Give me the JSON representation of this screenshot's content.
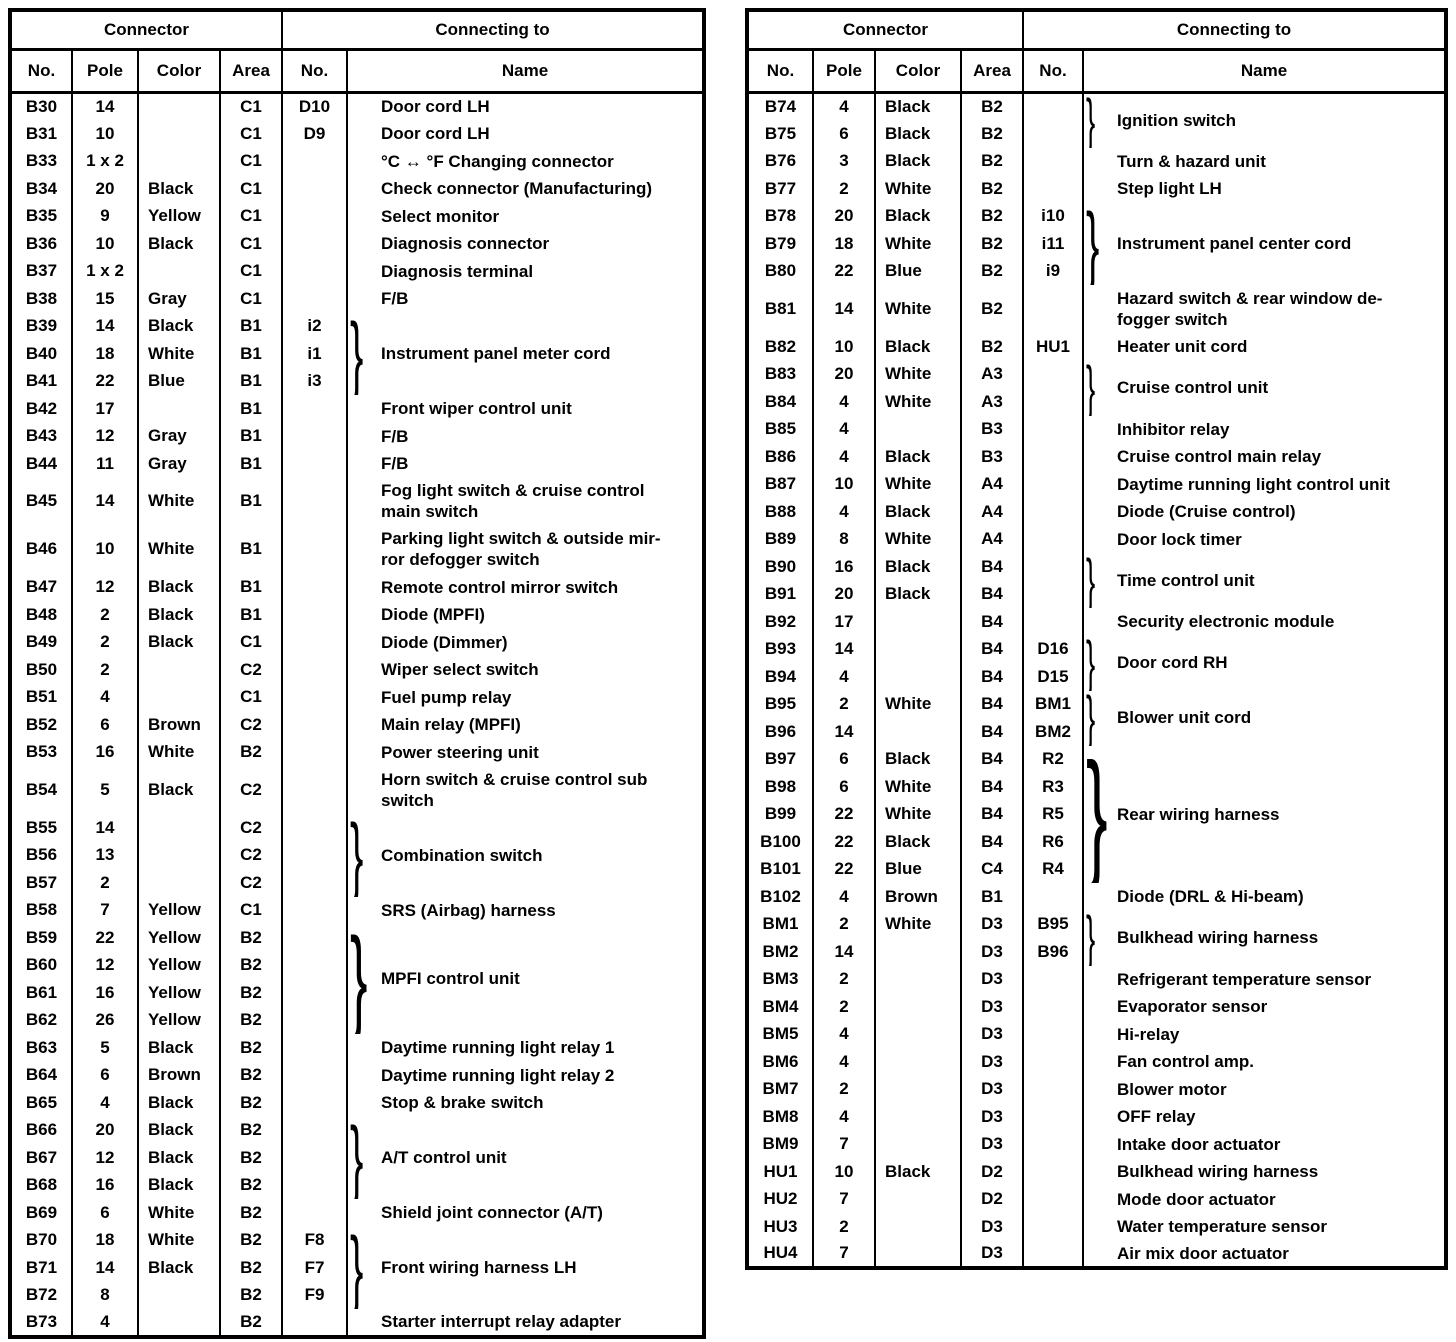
{
  "page": {
    "background_color": "#ffffff",
    "text_color": "#000000",
    "brace_char": "}"
  },
  "tables": [
    {
      "id": "left",
      "header": {
        "connector": "Connector",
        "connecting_to": "Connecting to",
        "columns": [
          "No.",
          "Pole",
          "Color",
          "Area",
          "No.",
          "Name"
        ]
      },
      "rows": [
        {
          "no": "B30",
          "pole": "14",
          "color": "",
          "area": "C1",
          "cno": "D10",
          "name": "Door cord LH"
        },
        {
          "no": "B31",
          "pole": "10",
          "color": "",
          "area": "C1",
          "cno": "D9",
          "name": "Door cord LH"
        },
        {
          "no": "B33",
          "pole": "1 x 2",
          "color": "",
          "area": "C1",
          "cno": "",
          "name": "°C ↔ °F Changing connector"
        },
        {
          "no": "B34",
          "pole": "20",
          "color": "Black",
          "area": "C1",
          "cno": "",
          "name": "Check connector (Manufacturing)"
        },
        {
          "no": "B35",
          "pole": "9",
          "color": "Yellow",
          "area": "C1",
          "cno": "",
          "name": "Select monitor"
        },
        {
          "no": "B36",
          "pole": "10",
          "color": "Black",
          "area": "C1",
          "cno": "",
          "name": "Diagnosis connector"
        },
        {
          "no": "B37",
          "pole": "1 x 2",
          "color": "",
          "area": "C1",
          "cno": "",
          "name": "Diagnosis terminal"
        },
        {
          "no": "B38",
          "pole": "15",
          "color": "Gray",
          "area": "C1",
          "cno": "",
          "name": "F/B"
        },
        {
          "no": "B39",
          "pole": "14",
          "color": "Black",
          "area": "B1",
          "cno": "i2",
          "name": "Instrument panel meter cord",
          "group": 3
        },
        {
          "no": "B40",
          "pole": "18",
          "color": "White",
          "area": "B1",
          "cno": "i1",
          "merged": true
        },
        {
          "no": "B41",
          "pole": "22",
          "color": "Blue",
          "area": "B1",
          "cno": "i3",
          "merged": true
        },
        {
          "no": "B42",
          "pole": "17",
          "color": "",
          "area": "B1",
          "cno": "",
          "name": "Front wiper control unit"
        },
        {
          "no": "B43",
          "pole": "12",
          "color": "Gray",
          "area": "B1",
          "cno": "",
          "name": "F/B"
        },
        {
          "no": "B44",
          "pole": "11",
          "color": "Gray",
          "area": "B1",
          "cno": "",
          "name": "F/B"
        },
        {
          "no": "B45",
          "pole": "14",
          "color": "White",
          "area": "B1",
          "cno": "",
          "name": "Fog light switch & cruise control\nmain switch",
          "tall": true
        },
        {
          "no": "B46",
          "pole": "10",
          "color": "White",
          "area": "B1",
          "cno": "",
          "name": "Parking light switch & outside mir-\nror defogger switch",
          "tall": true
        },
        {
          "no": "B47",
          "pole": "12",
          "color": "Black",
          "area": "B1",
          "cno": "",
          "name": "Remote control mirror switch"
        },
        {
          "no": "B48",
          "pole": "2",
          "color": "Black",
          "area": "B1",
          "cno": "",
          "name": "Diode (MPFI)"
        },
        {
          "no": "B49",
          "pole": "2",
          "color": "Black",
          "area": "C1",
          "cno": "",
          "name": "Diode (Dimmer)"
        },
        {
          "no": "B50",
          "pole": "2",
          "color": "",
          "area": "C2",
          "cno": "",
          "name": "Wiper select switch"
        },
        {
          "no": "B51",
          "pole": "4",
          "color": "",
          "area": "C1",
          "cno": "",
          "name": "Fuel pump relay"
        },
        {
          "no": "B52",
          "pole": "6",
          "color": "Brown",
          "area": "C2",
          "cno": "",
          "name": "Main relay (MPFI)"
        },
        {
          "no": "B53",
          "pole": "16",
          "color": "White",
          "area": "B2",
          "cno": "",
          "name": "Power steering unit"
        },
        {
          "no": "B54",
          "pole": "5",
          "color": "Black",
          "area": "C2",
          "cno": "",
          "name": "Horn switch & cruise control sub\nswitch",
          "tall": true
        },
        {
          "no": "B55",
          "pole": "14",
          "color": "",
          "area": "C2",
          "cno": "",
          "name": "Combination switch",
          "group": 3
        },
        {
          "no": "B56",
          "pole": "13",
          "color": "",
          "area": "C2",
          "cno": "",
          "merged": true
        },
        {
          "no": "B57",
          "pole": "2",
          "color": "",
          "area": "C2",
          "cno": "",
          "merged": true
        },
        {
          "no": "B58",
          "pole": "7",
          "color": "Yellow",
          "area": "C1",
          "cno": "",
          "name": "SRS (Airbag) harness"
        },
        {
          "no": "B59",
          "pole": "22",
          "color": "Yellow",
          "area": "B2",
          "cno": "",
          "name": "MPFI control unit",
          "group": 4
        },
        {
          "no": "B60",
          "pole": "12",
          "color": "Yellow",
          "area": "B2",
          "cno": "",
          "merged": true
        },
        {
          "no": "B61",
          "pole": "16",
          "color": "Yellow",
          "area": "B2",
          "cno": "",
          "merged": true
        },
        {
          "no": "B62",
          "pole": "26",
          "color": "Yellow",
          "area": "B2",
          "cno": "",
          "merged": true
        },
        {
          "no": "B63",
          "pole": "5",
          "color": "Black",
          "area": "B2",
          "cno": "",
          "name": "Daytime running light relay 1"
        },
        {
          "no": "B64",
          "pole": "6",
          "color": "Brown",
          "area": "B2",
          "cno": "",
          "name": "Daytime running light relay 2"
        },
        {
          "no": "B65",
          "pole": "4",
          "color": "Black",
          "area": "B2",
          "cno": "",
          "name": "Stop & brake switch"
        },
        {
          "no": "B66",
          "pole": "20",
          "color": "Black",
          "area": "B2",
          "cno": "",
          "name": "A/T control unit",
          "group": 3
        },
        {
          "no": "B67",
          "pole": "12",
          "color": "Black",
          "area": "B2",
          "cno": "",
          "merged": true
        },
        {
          "no": "B68",
          "pole": "16",
          "color": "Black",
          "area": "B2",
          "cno": "",
          "merged": true
        },
        {
          "no": "B69",
          "pole": "6",
          "color": "White",
          "area": "B2",
          "cno": "",
          "name": "Shield joint connector (A/T)"
        },
        {
          "no": "B70",
          "pole": "18",
          "color": "White",
          "area": "B2",
          "cno": "F8",
          "name": "Front wiring harness LH",
          "group": 3
        },
        {
          "no": "B71",
          "pole": "14",
          "color": "Black",
          "area": "B2",
          "cno": "F7",
          "merged": true
        },
        {
          "no": "B72",
          "pole": "8",
          "color": "",
          "area": "B2",
          "cno": "F9",
          "merged": true
        },
        {
          "no": "B73",
          "pole": "4",
          "color": "",
          "area": "B2",
          "cno": "",
          "name": "Starter interrupt relay adapter"
        }
      ]
    },
    {
      "id": "right",
      "header": {
        "connector": "Connector",
        "connecting_to": "Connecting to",
        "columns": [
          "No.",
          "Pole",
          "Color",
          "Area",
          "No.",
          "Name"
        ]
      },
      "rows": [
        {
          "no": "B74",
          "pole": "4",
          "color": "Black",
          "area": "B2",
          "cno": "",
          "name": "Ignition switch",
          "group": 2
        },
        {
          "no": "B75",
          "pole": "6",
          "color": "Black",
          "area": "B2",
          "cno": "",
          "merged": true
        },
        {
          "no": "B76",
          "pole": "3",
          "color": "Black",
          "area": "B2",
          "cno": "",
          "name": "Turn & hazard unit"
        },
        {
          "no": "B77",
          "pole": "2",
          "color": "White",
          "area": "B2",
          "cno": "",
          "name": "Step light LH"
        },
        {
          "no": "B78",
          "pole": "20",
          "color": "Black",
          "area": "B2",
          "cno": "i10",
          "name": "Instrument panel center cord",
          "group": 3
        },
        {
          "no": "B79",
          "pole": "18",
          "color": "White",
          "area": "B2",
          "cno": "i11",
          "merged": true
        },
        {
          "no": "B80",
          "pole": "22",
          "color": "Blue",
          "area": "B2",
          "cno": "i9",
          "merged": true
        },
        {
          "no": "B81",
          "pole": "14",
          "color": "White",
          "area": "B2",
          "cno": "",
          "name": "Hazard switch & rear window de-\nfogger switch",
          "tall": true
        },
        {
          "no": "B82",
          "pole": "10",
          "color": "Black",
          "area": "B2",
          "cno": "HU1",
          "name": "Heater unit cord"
        },
        {
          "no": "B83",
          "pole": "20",
          "color": "White",
          "area": "A3",
          "cno": "",
          "name": "Cruise control unit",
          "group": 2
        },
        {
          "no": "B84",
          "pole": "4",
          "color": "White",
          "area": "A3",
          "cno": "",
          "merged": true
        },
        {
          "no": "B85",
          "pole": "4",
          "color": "",
          "area": "B3",
          "cno": "",
          "name": "Inhibitor relay"
        },
        {
          "no": "B86",
          "pole": "4",
          "color": "Black",
          "area": "B3",
          "cno": "",
          "name": "Cruise control main relay"
        },
        {
          "no": "B87",
          "pole": "10",
          "color": "White",
          "area": "A4",
          "cno": "",
          "name": "Daytime running light control unit"
        },
        {
          "no": "B88",
          "pole": "4",
          "color": "Black",
          "area": "A4",
          "cno": "",
          "name": "Diode (Cruise control)"
        },
        {
          "no": "B89",
          "pole": "8",
          "color": "White",
          "area": "A4",
          "cno": "",
          "name": "Door lock timer"
        },
        {
          "no": "B90",
          "pole": "16",
          "color": "Black",
          "area": "B4",
          "cno": "",
          "name": "Time control unit",
          "group": 2
        },
        {
          "no": "B91",
          "pole": "20",
          "color": "Black",
          "area": "B4",
          "cno": "",
          "merged": true
        },
        {
          "no": "B92",
          "pole": "17",
          "color": "",
          "area": "B4",
          "cno": "",
          "name": "Security electronic module"
        },
        {
          "no": "B93",
          "pole": "14",
          "color": "",
          "area": "B4",
          "cno": "D16",
          "name": "Door cord RH",
          "group": 2
        },
        {
          "no": "B94",
          "pole": "4",
          "color": "",
          "area": "B4",
          "cno": "D15",
          "merged": true
        },
        {
          "no": "B95",
          "pole": "2",
          "color": "White",
          "area": "B4",
          "cno": "BM1",
          "name": "Blower unit cord",
          "group": 2
        },
        {
          "no": "B96",
          "pole": "14",
          "color": "",
          "area": "B4",
          "cno": "BM2",
          "merged": true
        },
        {
          "no": "B97",
          "pole": "6",
          "color": "Black",
          "area": "B4",
          "cno": "R2",
          "name": "Rear wiring harness",
          "group": 5
        },
        {
          "no": "B98",
          "pole": "6",
          "color": "White",
          "area": "B4",
          "cno": "R3",
          "merged": true
        },
        {
          "no": "B99",
          "pole": "22",
          "color": "White",
          "area": "B4",
          "cno": "R5",
          "merged": true
        },
        {
          "no": "B100",
          "pole": "22",
          "color": "Black",
          "area": "B4",
          "cno": "R6",
          "merged": true
        },
        {
          "no": "B101",
          "pole": "22",
          "color": "Blue",
          "area": "C4",
          "cno": "R4",
          "merged": true
        },
        {
          "no": "B102",
          "pole": "4",
          "color": "Brown",
          "area": "B1",
          "cno": "",
          "name": "Diode (DRL & Hi-beam)"
        },
        {
          "no": "BM1",
          "pole": "2",
          "color": "White",
          "area": "D3",
          "cno": "B95",
          "name": "Bulkhead wiring harness",
          "group": 2
        },
        {
          "no": "BM2",
          "pole": "14",
          "color": "",
          "area": "D3",
          "cno": "B96",
          "merged": true
        },
        {
          "no": "BM3",
          "pole": "2",
          "color": "",
          "area": "D3",
          "cno": "",
          "name": "Refrigerant temperature sensor"
        },
        {
          "no": "BM4",
          "pole": "2",
          "color": "",
          "area": "D3",
          "cno": "",
          "name": "Evaporator sensor"
        },
        {
          "no": "BM5",
          "pole": "4",
          "color": "",
          "area": "D3",
          "cno": "",
          "name": "Hi-relay"
        },
        {
          "no": "BM6",
          "pole": "4",
          "color": "",
          "area": "D3",
          "cno": "",
          "name": "Fan control amp."
        },
        {
          "no": "BM7",
          "pole": "2",
          "color": "",
          "area": "D3",
          "cno": "",
          "name": "Blower motor"
        },
        {
          "no": "BM8",
          "pole": "4",
          "color": "",
          "area": "D3",
          "cno": "",
          "name": "OFF relay"
        },
        {
          "no": "BM9",
          "pole": "7",
          "color": "",
          "area": "D3",
          "cno": "",
          "name": "Intake door actuator"
        },
        {
          "no": "HU1",
          "pole": "10",
          "color": "Black",
          "area": "D2",
          "cno": "",
          "name": "Bulkhead wiring harness"
        },
        {
          "no": "HU2",
          "pole": "7",
          "color": "",
          "area": "D2",
          "cno": "",
          "name": "Mode door actuator"
        },
        {
          "no": "HU3",
          "pole": "2",
          "color": "",
          "area": "D3",
          "cno": "",
          "name": "Water temperature sensor"
        },
        {
          "no": "HU4",
          "pole": "7",
          "color": "",
          "area": "D3",
          "cno": "",
          "name": "Air mix door actuator"
        }
      ]
    }
  ]
}
